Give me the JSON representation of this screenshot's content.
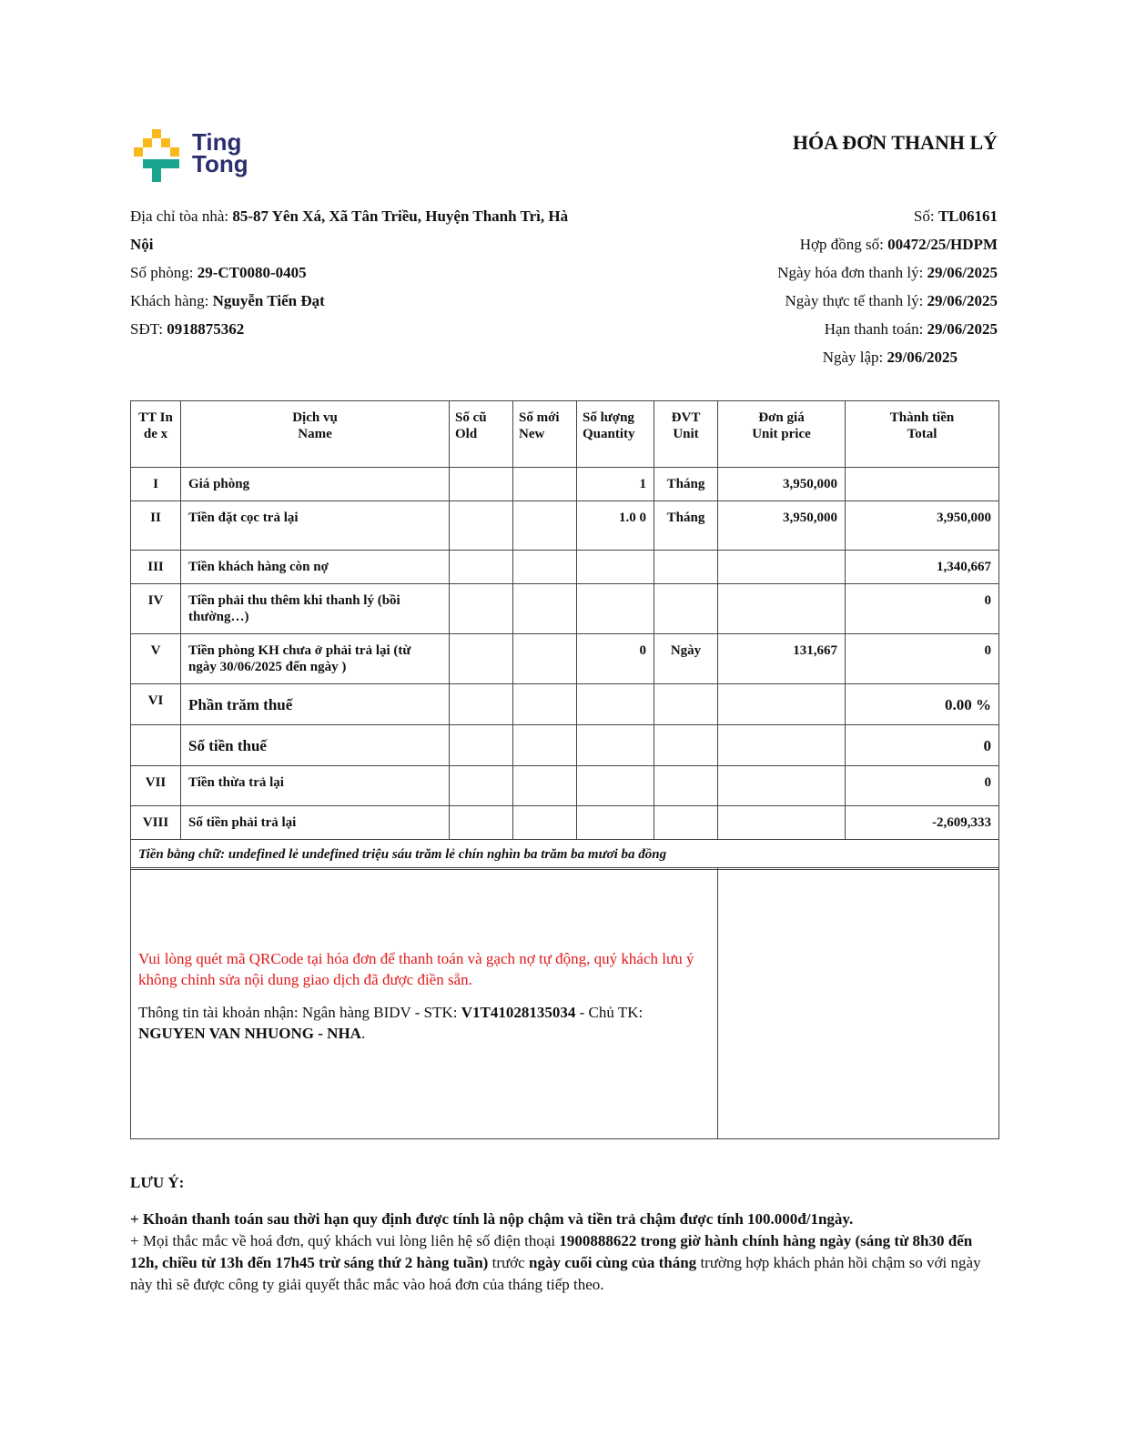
{
  "logo": {
    "line1": "Ting",
    "line2": "Tong",
    "colors": {
      "yellow": "#F9B91A",
      "teal": "#1AA58F",
      "navy": "#2B2E6F"
    }
  },
  "title": "HÓA ĐƠN THANH LÝ",
  "left_info": {
    "address_label": "Địa chỉ tòa nhà: ",
    "address": "85-87 Yên Xá, Xã Tân Triều, Huyện Thanh Trì, Hà Nội",
    "room_label": "Số phòng: ",
    "room": "29-CT0080-0405",
    "customer_label": "Khách hàng: ",
    "customer": "Nguyễn Tiến Đạt",
    "phone_label": "SĐT: ",
    "phone": "0918875362"
  },
  "right_info": {
    "no_label": "Số: ",
    "no": "TL06161",
    "contract_label": "Hợp đồng số: ",
    "contract": "00472/25/HDPM",
    "invoice_date_label": "Ngày hóa đơn thanh lý: ",
    "invoice_date": "29/06/2025",
    "actual_date_label": "Ngày thực tế thanh lý: ",
    "actual_date": "29/06/2025",
    "due_label": "Hạn thanh toán: ",
    "due": "29/06/2025",
    "created_label": "Ngày lập: ",
    "created": "29/06/2025"
  },
  "table": {
    "headers": [
      "TT Inde x",
      "Dịch vụ\nName",
      "Số cũ\nOld",
      "Số mới\nNew",
      "Số lượng\nQuantity",
      "ĐVT\nUnit",
      "Đơn giá\nUnit price",
      "Thành tiền\nTotal"
    ],
    "rows": [
      [
        "I",
        "Giá phòng",
        "",
        "",
        "1",
        "Tháng",
        "3,950,000",
        ""
      ],
      [
        "II",
        "Tiền đặt cọc trả lại",
        "",
        "",
        "1.0 0",
        "Tháng",
        "3,950,000",
        "3,950,000"
      ],
      [
        "III",
        "Tiền khách hàng còn nợ",
        "",
        "",
        "",
        "",
        "",
        "1,340,667"
      ],
      [
        "IV",
        "Tiền phải thu thêm khi thanh lý (bồi thường…)",
        "",
        "",
        "",
        "",
        "",
        "0"
      ],
      [
        "V",
        "Tiền phòng KH chưa ở phải trả lại (từ ngày 30/06/2025 đến ngày )",
        "",
        "",
        "0",
        "Ngày",
        "131,667",
        "0"
      ],
      [
        "VI",
        "Phần trăm thuế",
        "",
        "",
        "",
        "",
        "",
        "0.00 %"
      ],
      [
        "",
        "Số tiền thuế",
        "",
        "",
        "",
        "",
        "",
        "0"
      ],
      [
        "VII",
        "Tiền thừa trả lại",
        "",
        "",
        "",
        "",
        "",
        "0"
      ],
      [
        "VIII",
        "Số tiền phải trả lại",
        "",
        "",
        "",
        "",
        "",
        "-2,609,333"
      ]
    ],
    "words": "Tiền bằng chữ: undefined lẻ undefined triệu sáu trăm lẻ chín nghìn ba trăm ba mươi ba đồng"
  },
  "payment": {
    "warning": "Vui lòng quét mã QRCode tại hóa đơn để thanh toán và gạch nợ tự động, quý khách lưu ý không chỉnh sửa nội dung giao dịch đã được điền sẵn.",
    "account_prefix": "Thông tin tài khoản nhận: Ngân hàng BIDV - STK: ",
    "account_no": "V1T41028135034",
    "holder_prefix": " - Chủ TK: ",
    "holder": "NGUYEN VAN NHUONG - NHA",
    "suffix": ".",
    "warning_color": "#e0191b"
  },
  "notes": {
    "heading": "LƯU Ý:",
    "line1": "+ Khoản thanh toán sau thời hạn quy định được tính là nộp chậm và tiền trả chậm được tính 100.000đ/1ngày.",
    "line2_a": "+ Mọi thắc mắc về hoá đơn, quý khách vui lòng liên hệ số điện thoại ",
    "line2_b": "1900888622 trong giờ hành chính hàng ngày (sáng từ 8h30 đến 12h, chiều từ 13h đến 17h45 trừ sáng thứ 2 hàng tuần)",
    "line2_c": " trước ",
    "line2_d": "ngày cuối cùng của tháng",
    "line2_e": " trường hợp khách phản hồi chậm so với ngày này thì sẽ được công ty giải quyết thắc mắc vào hoá đơn của tháng tiếp theo."
  }
}
